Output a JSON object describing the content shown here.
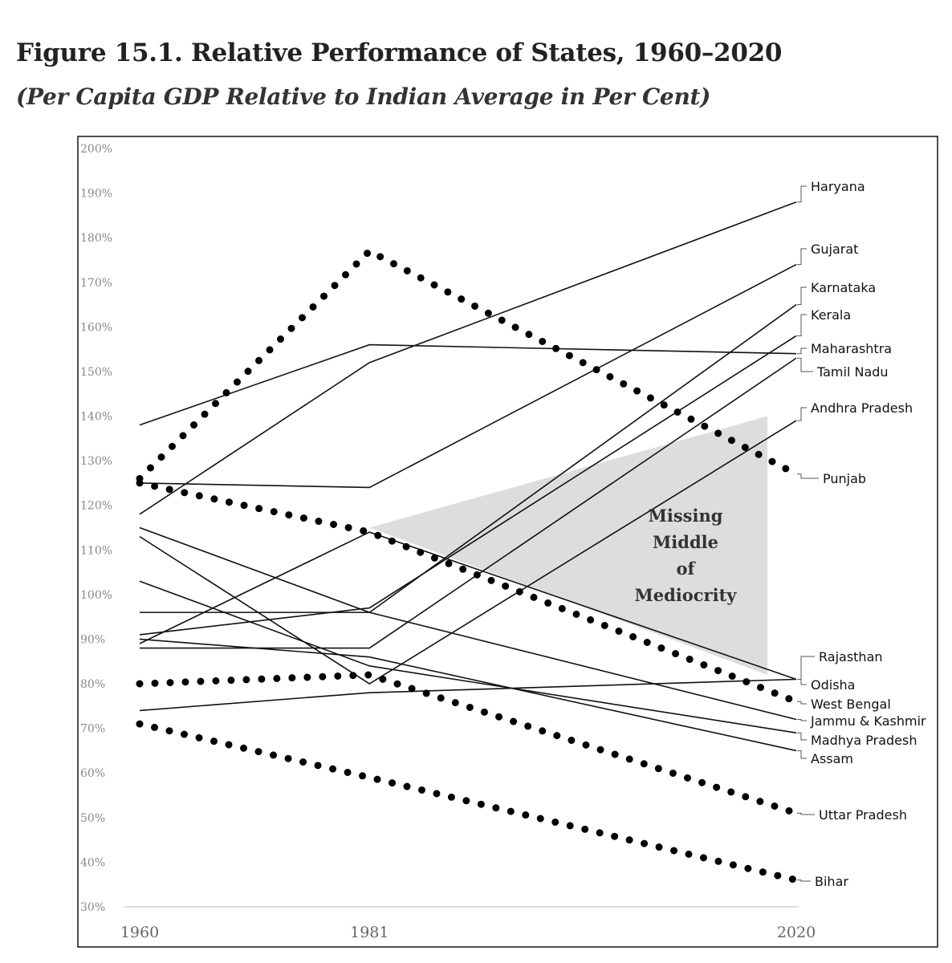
{
  "title": "Figure 15.1. Relative Performance of States, 1960–2020",
  "subtitle": "(Per Capita GDP Relative to Indian Average in Per Cent)",
  "chart_data": {
    "type": "line",
    "title": "Figure 15.1. Relative Performance of States, 1960–2020",
    "subtitle": "(Per Capita GDP Relative to Indian Average in Per Cent)",
    "xlabel": "",
    "ylabel": "",
    "x": [
      1960,
      1981,
      2020
    ],
    "x_tick_labels": [
      "1960",
      "1981",
      "2020"
    ],
    "ylim": [
      30,
      200
    ],
    "y_ticks": [
      30,
      40,
      50,
      60,
      70,
      80,
      90,
      100,
      110,
      120,
      130,
      140,
      150,
      160,
      170,
      180,
      190,
      200
    ],
    "y_tick_labels": [
      "30%",
      "40%",
      "50%",
      "60%",
      "70%",
      "80%",
      "90%",
      "100%",
      "110%",
      "120%",
      "130%",
      "140%",
      "150%",
      "160%",
      "170%",
      "180%",
      "190%",
      "200%"
    ],
    "series": [
      {
        "name": "Haryana",
        "style": "solid",
        "values": [
          118,
          152,
          188
        ]
      },
      {
        "name": "Gujarat",
        "style": "solid",
        "values": [
          125,
          124,
          174
        ]
      },
      {
        "name": "Karnataka",
        "style": "solid",
        "values": [
          96,
          96,
          165
        ]
      },
      {
        "name": "Kerala",
        "style": "solid",
        "values": [
          91,
          97,
          158
        ]
      },
      {
        "name": "Maharashtra",
        "style": "solid",
        "values": [
          138,
          156,
          154
        ]
      },
      {
        "name": "Tamil Nadu",
        "style": "solid",
        "values": [
          88,
          88,
          153
        ]
      },
      {
        "name": "Andhra Pradesh",
        "style": "solid",
        "values": [
          113,
          80,
          139
        ]
      },
      {
        "name": "Punjab",
        "style": "dotted",
        "values": [
          126,
          177,
          127
        ]
      },
      {
        "name": "Rajasthan",
        "style": "solid",
        "values": [
          89,
          114,
          81
        ]
      },
      {
        "name": "Odisha",
        "style": "solid",
        "values": [
          74,
          78,
          81
        ]
      },
      {
        "name": "West Bengal",
        "style": "dotted",
        "values": [
          125,
          114,
          76
        ]
      },
      {
        "name": "Jammu & Kashmir",
        "style": "solid",
        "values": [
          115,
          96,
          72
        ]
      },
      {
        "name": "Madhya Pradesh",
        "style": "solid",
        "values": [
          103,
          84,
          69
        ]
      },
      {
        "name": "Assam",
        "style": "solid",
        "values": [
          90,
          86,
          65
        ]
      },
      {
        "name": "Uttar Pradesh",
        "style": "dotted",
        "values": [
          80,
          82,
          51
        ]
      },
      {
        "name": "Bihar",
        "style": "dotted",
        "values": [
          71,
          59,
          36
        ]
      }
    ],
    "annotation": {
      "lines": [
        "Missing",
        "Middle",
        "of",
        "Mediocrity"
      ],
      "region": "shaded triangle between 1981 and 2020"
    },
    "grid": false
  }
}
